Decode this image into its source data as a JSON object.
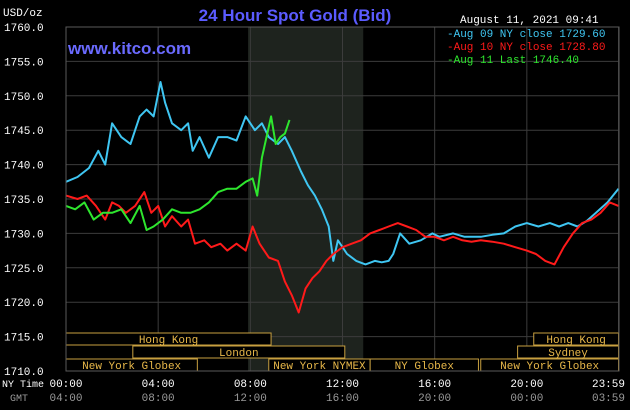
{
  "chart_data": {
    "type": "line",
    "title": "24 Hour Spot Gold (Bid)",
    "watermark": "www.kitco.com",
    "date_label": "August 11, 2021 09:41",
    "y_unit": "USD/oz",
    "ylim": [
      1710.0,
      1760.0
    ],
    "yticks": [
      "1760.0",
      "1755.0",
      "1750.0",
      "1745.0",
      "1740.0",
      "1735.0",
      "1730.0",
      "1725.0",
      "1720.0",
      "1715.0",
      "1710.0"
    ],
    "y_tick_values": [
      1760,
      1755,
      1750,
      1745,
      1740,
      1735,
      1730,
      1725,
      1720,
      1715,
      1710
    ],
    "xlim": [
      0,
      24
    ],
    "x_ticks_ny": [
      "00:00",
      "04:00",
      "08:00",
      "12:00",
      "16:00",
      "20:00",
      "23:59"
    ],
    "x_ticks_gmt": [
      "04:00",
      "08:00",
      "12:00",
      "16:00",
      "20:00",
      "00:00",
      "03:59"
    ],
    "x_tick_hours": [
      0,
      4,
      8,
      12,
      16,
      20,
      23.98
    ],
    "x_row_label_ny": "NY Time",
    "x_row_label_gmt": "GMT",
    "shaded_region_hours": [
      7.9,
      12.9
    ],
    "legend_position": "top-right",
    "grid": true,
    "series": [
      {
        "name": "Aug 09 NY close 1729.60",
        "color": "#3fc6f2",
        "points": [
          [
            0,
            1737.5
          ],
          [
            0.5,
            1738.2
          ],
          [
            1,
            1739.5
          ],
          [
            1.4,
            1742
          ],
          [
            1.7,
            1740
          ],
          [
            2,
            1746
          ],
          [
            2.4,
            1744
          ],
          [
            2.8,
            1743
          ],
          [
            3.2,
            1747
          ],
          [
            3.5,
            1748
          ],
          [
            3.8,
            1747
          ],
          [
            4.1,
            1752
          ],
          [
            4.3,
            1749
          ],
          [
            4.6,
            1746
          ],
          [
            5,
            1745
          ],
          [
            5.3,
            1746
          ],
          [
            5.5,
            1742
          ],
          [
            5.8,
            1744
          ],
          [
            6.2,
            1741
          ],
          [
            6.6,
            1744
          ],
          [
            7,
            1744
          ],
          [
            7.4,
            1743.5
          ],
          [
            7.8,
            1747
          ],
          [
            8.2,
            1745
          ],
          [
            8.5,
            1746
          ],
          [
            8.8,
            1744
          ],
          [
            9.2,
            1743
          ],
          [
            9.5,
            1744
          ],
          [
            9.8,
            1742
          ],
          [
            10.2,
            1739
          ],
          [
            10.5,
            1737
          ],
          [
            10.8,
            1735.5
          ],
          [
            11.1,
            1733.5
          ],
          [
            11.4,
            1731
          ],
          [
            11.6,
            1726
          ],
          [
            11.8,
            1729
          ],
          [
            12.2,
            1727
          ],
          [
            12.6,
            1726
          ],
          [
            13,
            1725.5
          ],
          [
            13.4,
            1726
          ],
          [
            13.7,
            1725.8
          ],
          [
            14,
            1726
          ],
          [
            14.2,
            1727
          ],
          [
            14.5,
            1730
          ],
          [
            14.9,
            1728.5
          ],
          [
            15.4,
            1729
          ],
          [
            15.9,
            1730
          ],
          [
            16.2,
            1729.5
          ],
          [
            16.8,
            1730
          ],
          [
            17.3,
            1729.5
          ],
          [
            18,
            1729.5
          ],
          [
            18.5,
            1729.8
          ],
          [
            19,
            1730
          ],
          [
            19.5,
            1731
          ],
          [
            20,
            1731.5
          ],
          [
            20.5,
            1731
          ],
          [
            21,
            1731.5
          ],
          [
            21.4,
            1731
          ],
          [
            21.8,
            1731.5
          ],
          [
            22.2,
            1731
          ],
          [
            22.6,
            1731.8
          ],
          [
            23,
            1733
          ],
          [
            23.5,
            1734.5
          ],
          [
            23.98,
            1736.5
          ]
        ]
      },
      {
        "name": "Aug 10 NY close 1728.80",
        "color": "#ff1a1a",
        "points": [
          [
            0,
            1735.5
          ],
          [
            0.5,
            1735
          ],
          [
            0.9,
            1735.5
          ],
          [
            1.3,
            1734
          ],
          [
            1.7,
            1732
          ],
          [
            2,
            1734.5
          ],
          [
            2.3,
            1734
          ],
          [
            2.6,
            1733
          ],
          [
            3,
            1734
          ],
          [
            3.4,
            1736
          ],
          [
            3.7,
            1733
          ],
          [
            4,
            1734
          ],
          [
            4.3,
            1731
          ],
          [
            4.6,
            1732.5
          ],
          [
            5,
            1731
          ],
          [
            5.3,
            1732
          ],
          [
            5.6,
            1728.5
          ],
          [
            6,
            1729
          ],
          [
            6.3,
            1728
          ],
          [
            6.7,
            1728.5
          ],
          [
            7,
            1727.5
          ],
          [
            7.4,
            1728.5
          ],
          [
            7.8,
            1727.5
          ],
          [
            8.1,
            1731
          ],
          [
            8.4,
            1728.5
          ],
          [
            8.8,
            1726.5
          ],
          [
            9.2,
            1726
          ],
          [
            9.5,
            1723
          ],
          [
            9.8,
            1721
          ],
          [
            10.1,
            1718.5
          ],
          [
            10.4,
            1722
          ],
          [
            10.7,
            1723.5
          ],
          [
            11,
            1724.5
          ],
          [
            11.3,
            1726
          ],
          [
            11.6,
            1727
          ],
          [
            12,
            1728
          ],
          [
            12.4,
            1728.5
          ],
          [
            12.8,
            1729
          ],
          [
            13.2,
            1730
          ],
          [
            13.6,
            1730.5
          ],
          [
            14,
            1731
          ],
          [
            14.4,
            1731.5
          ],
          [
            14.8,
            1731
          ],
          [
            15.2,
            1730.5
          ],
          [
            15.6,
            1729.5
          ],
          [
            16,
            1729.5
          ],
          [
            16.4,
            1729
          ],
          [
            16.8,
            1729.5
          ],
          [
            17.2,
            1729
          ],
          [
            17.6,
            1728.8
          ],
          [
            18,
            1729
          ],
          [
            18.5,
            1728.8
          ],
          [
            19,
            1728.5
          ],
          [
            19.5,
            1728
          ],
          [
            20,
            1727.5
          ],
          [
            20.4,
            1727
          ],
          [
            20.8,
            1726
          ],
          [
            21.2,
            1725.5
          ],
          [
            21.6,
            1728
          ],
          [
            22,
            1730
          ],
          [
            22.4,
            1731.5
          ],
          [
            22.8,
            1732
          ],
          [
            23.2,
            1733
          ],
          [
            23.6,
            1734.5
          ],
          [
            23.98,
            1734
          ]
        ]
      },
      {
        "name": "Aug 11 Last 1746.40",
        "color": "#2ee62e",
        "points": [
          [
            0,
            1734
          ],
          [
            0.4,
            1733.5
          ],
          [
            0.8,
            1734.5
          ],
          [
            1.2,
            1732
          ],
          [
            1.6,
            1733
          ],
          [
            2,
            1733
          ],
          [
            2.4,
            1733.5
          ],
          [
            2.8,
            1731.5
          ],
          [
            3.2,
            1734
          ],
          [
            3.5,
            1730.5
          ],
          [
            3.8,
            1731
          ],
          [
            4.2,
            1732
          ],
          [
            4.6,
            1733.5
          ],
          [
            5,
            1733
          ],
          [
            5.4,
            1733
          ],
          [
            5.8,
            1733.5
          ],
          [
            6.2,
            1734.5
          ],
          [
            6.6,
            1736
          ],
          [
            7,
            1736.5
          ],
          [
            7.4,
            1736.5
          ],
          [
            7.8,
            1737.5
          ],
          [
            8.1,
            1738
          ],
          [
            8.3,
            1735.5
          ],
          [
            8.5,
            1741
          ],
          [
            8.7,
            1744
          ],
          [
            8.9,
            1747
          ],
          [
            9.1,
            1743
          ],
          [
            9.3,
            1744
          ],
          [
            9.5,
            1744.5
          ],
          [
            9.7,
            1746.5
          ]
        ]
      }
    ],
    "sessions": [
      {
        "label": "Hong Kong",
        "start": 0,
        "end": 8.9,
        "row": 0
      },
      {
        "label": "London",
        "start": 2.9,
        "end": 12.1,
        "row": 1
      },
      {
        "label": "New York Globex",
        "start": 0,
        "end": 5.7,
        "row": 2
      },
      {
        "label": "New York NYMEX",
        "start": 8.8,
        "end": 13.2,
        "row": 2
      },
      {
        "label": "NY Globex",
        "start": 13.2,
        "end": 17.9,
        "row": 2
      },
      {
        "label": "Hong Kong",
        "start": 20.3,
        "end": 23.98,
        "row": 0
      },
      {
        "label": "Sydney",
        "start": 19.6,
        "end": 23.98,
        "row": 1
      },
      {
        "label": "New York Globex",
        "start": 18,
        "end": 23.98,
        "row": 2
      }
    ]
  }
}
